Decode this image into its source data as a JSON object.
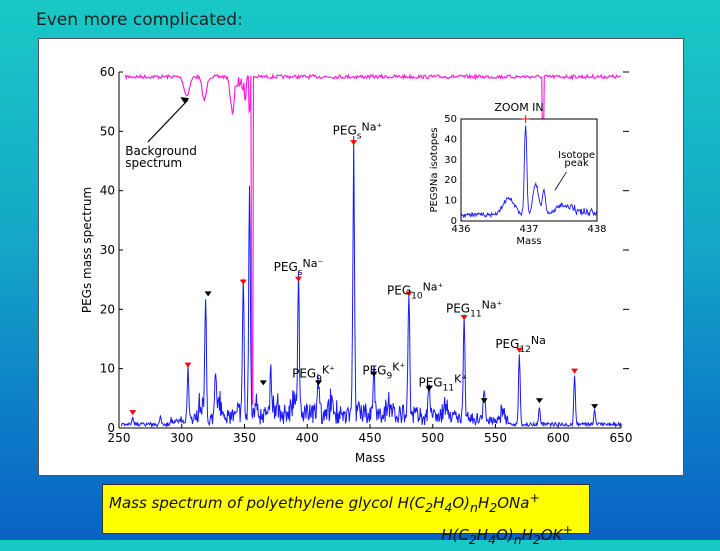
{
  "slide": {
    "title": "Even more complicated:"
  },
  "caption": {
    "line1_prefix": "Mass spectrum of polyethylene glycol H(C",
    "line1_a": "2",
    "line1_b": "H",
    "line1_c": "4",
    "line1_d": "O)",
    "line1_e": "n",
    "line1_f": "H",
    "line1_g": "2",
    "line1_h": "ONa",
    "line1_i": "+",
    "line2_prefix": "H(C",
    "line2_a": "2",
    "line2_b": "H",
    "line2_c": "4",
    "line2_d": "O)",
    "line2_e": "n",
    "line2_f": "H",
    "line2_g": "2",
    "line2_h": "OK",
    "line2_i": "+"
  },
  "chart_data": [
    {
      "type": "line",
      "xlabel": "Mass",
      "ylabel": "PEGs mass spectrum",
      "xlim": [
        250,
        650
      ],
      "ylim": [
        0,
        60
      ],
      "x_ticks": [
        250,
        300,
        350,
        400,
        450,
        500,
        550,
        600,
        650
      ],
      "y_ticks": [
        0,
        10,
        20,
        30,
        40,
        50,
        60
      ],
      "colors": {
        "spectrum": "#1a1aff",
        "background": "#ff22dd",
        "marker": "#ff0000",
        "k_marker": "#000000"
      },
      "background_spectrum_label": [
        "Background",
        "spectrum"
      ],
      "peaks": [
        {
          "x": 261,
          "y": 1.2
        },
        {
          "x": 283,
          "y": 1.4
        },
        {
          "x": 305,
          "y": 9.0
        },
        {
          "x": 319,
          "y": 21.0
        },
        {
          "x": 327,
          "y": 8.5
        },
        {
          "x": 349,
          "y": 23.0
        },
        {
          "x": 354,
          "y": 39.0
        },
        {
          "x": 371,
          "y": 7.0
        },
        {
          "x": 393,
          "y": 23.5
        },
        {
          "x": 409,
          "y": 6.0
        },
        {
          "x": 437,
          "y": 45.0
        },
        {
          "x": 453,
          "y": 8.0
        },
        {
          "x": 481,
          "y": 21.0
        },
        {
          "x": 497,
          "y": 5.5
        },
        {
          "x": 525,
          "y": 17.5
        },
        {
          "x": 541,
          "y": 5.0
        },
        {
          "x": 569,
          "y": 12.0
        },
        {
          "x": 585,
          "y": 3.0
        },
        {
          "x": 613,
          "y": 8.5
        },
        {
          "x": 629,
          "y": 2.5
        }
      ],
      "na_markers": [
        {
          "x": 261,
          "y": 1.5
        },
        {
          "x": 305,
          "y": 9.5
        },
        {
          "x": 349,
          "y": 23.5
        },
        {
          "x": 393,
          "y": 24.0
        },
        {
          "x": 437,
          "y": 47.0
        },
        {
          "x": 481,
          "y": 21.5
        },
        {
          "x": 525,
          "y": 17.5
        },
        {
          "x": 569,
          "y": 12.0
        },
        {
          "x": 613,
          "y": 8.5
        }
      ],
      "k_markers": [
        {
          "x": 321,
          "y": 21.5
        },
        {
          "x": 365,
          "y": 6.5
        },
        {
          "x": 409,
          "y": 6.5
        },
        {
          "x": 453,
          "y": 8.0
        },
        {
          "x": 497,
          "y": 5.5
        },
        {
          "x": 541,
          "y": 3.5
        },
        {
          "x": 585,
          "y": 3.5
        },
        {
          "x": 629,
          "y": 2.5
        }
      ],
      "annotations": [
        {
          "base": "PEG",
          "sub": "s",
          "sup": "Na⁺",
          "x": 440,
          "y": 49.5,
          "size": 12
        },
        {
          "base": "PEG",
          "sub": "s",
          "sup": "Na⁻",
          "x": 393,
          "y": 26.5,
          "size": 12
        },
        {
          "base": "PEG",
          "sub": "10",
          "sup": "Na⁺",
          "x": 486,
          "y": 22.5,
          "size": 12
        },
        {
          "base": "PEG",
          "sub": "11",
          "sup": "Na⁺",
          "x": 533,
          "y": 19.5,
          "size": 12
        },
        {
          "base": "PEG",
          "sub": "12",
          "sup": "Na",
          "x": 570,
          "y": 13.5,
          "size": 12
        },
        {
          "base": "PEG",
          "sub": "9",
          "sup": "K⁺",
          "x": 405,
          "y": 8.5,
          "size": 12
        },
        {
          "base": "PEG",
          "sub": "9",
          "sup": "K⁺",
          "x": 461,
          "y": 9.0,
          "size": 12
        },
        {
          "base": "PEG",
          "sub": "11",
          "sup": "K⁺",
          "x": 508,
          "y": 7.0,
          "size": 12
        }
      ]
    },
    {
      "type": "line",
      "title": "ZOOM IN",
      "xlabel": "Mass",
      "ylabel": "PEG9Na isotopes",
      "xlim": [
        436,
        438
      ],
      "ylim": [
        0,
        50
      ],
      "x_ticks": [
        436,
        437,
        438
      ],
      "y_ticks": [
        0,
        10,
        20,
        30,
        40,
        50
      ],
      "annotation": [
        "Isotope",
        "peak"
      ]
    }
  ]
}
